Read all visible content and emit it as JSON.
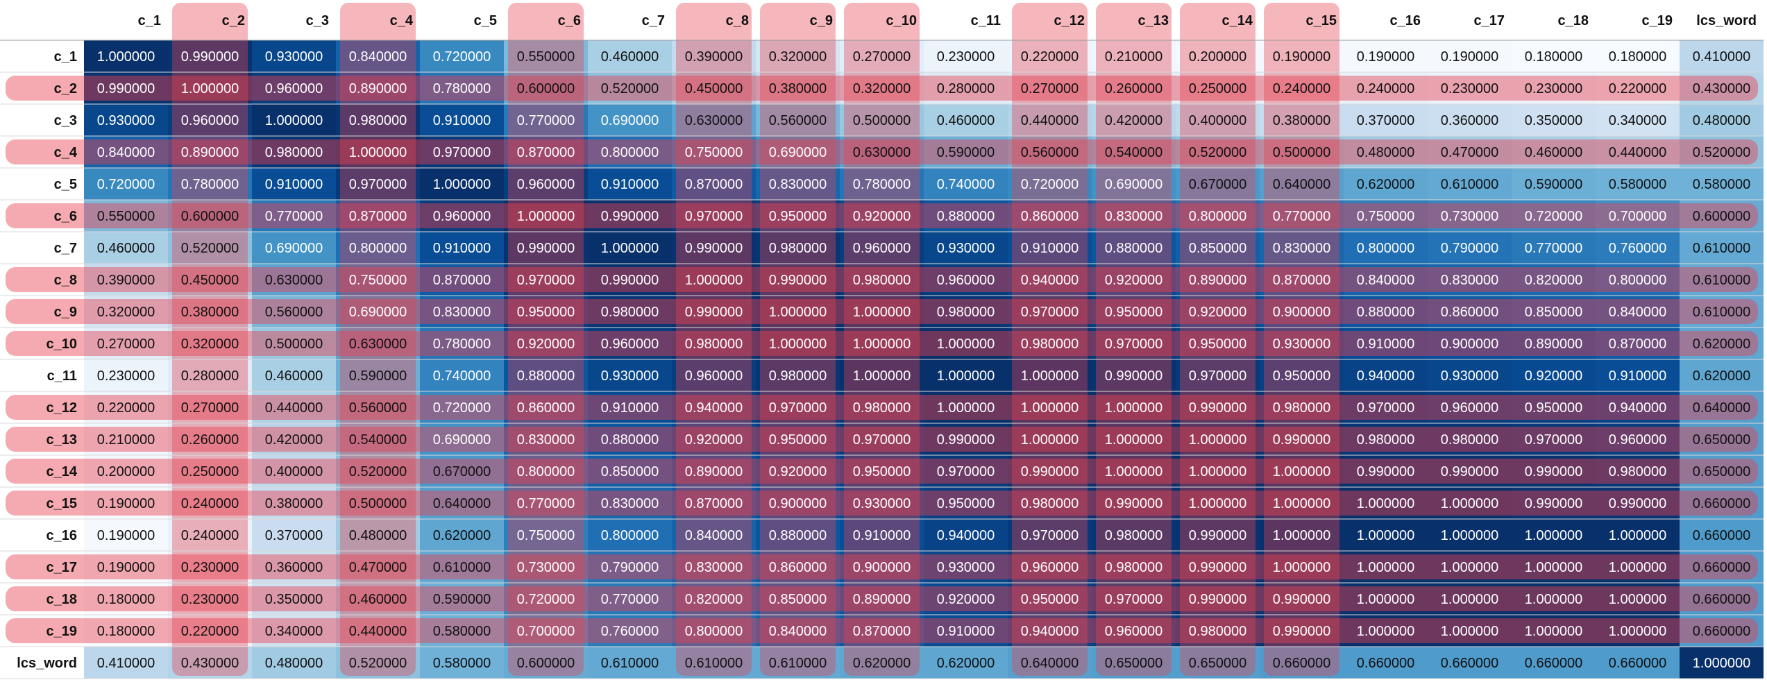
{
  "chart_data": {
    "type": "heatmap",
    "title": "",
    "colormap": {
      "name": "Blues",
      "stops": [
        "#f7fbff",
        "#deebf7",
        "#c6dbef",
        "#9ecae1",
        "#6baed6",
        "#4292c6",
        "#2171b5",
        "#08519c",
        "#08306b"
      ]
    },
    "highlight_color": "#e8414f",
    "rows": [
      "c_1",
      "c_2",
      "c_3",
      "c_4",
      "c_5",
      "c_6",
      "c_7",
      "c_8",
      "c_9",
      "c_10",
      "c_11",
      "c_12",
      "c_13",
      "c_14",
      "c_15",
      "c_16",
      "c_17",
      "c_18",
      "c_19",
      "lcs_word"
    ],
    "columns": [
      "c_1",
      "c_2",
      "c_3",
      "c_4",
      "c_5",
      "c_6",
      "c_7",
      "c_8",
      "c_9",
      "c_10",
      "c_11",
      "c_12",
      "c_13",
      "c_14",
      "c_15",
      "c_16",
      "c_17",
      "c_18",
      "c_19",
      "lcs_word"
    ],
    "highlighted_rows": [
      "c_2",
      "c_4",
      "c_6",
      "c_8",
      "c_9",
      "c_10",
      "c_12",
      "c_13",
      "c_14",
      "c_15",
      "c_17",
      "c_18",
      "c_19"
    ],
    "highlighted_columns": [
      "c_2",
      "c_4",
      "c_6",
      "c_8",
      "c_9",
      "c_10",
      "c_12",
      "c_13",
      "c_14",
      "c_15"
    ],
    "values": [
      [
        1.0,
        0.99,
        0.93,
        0.84,
        0.72,
        0.55,
        0.46,
        0.39,
        0.32,
        0.27,
        0.23,
        0.22,
        0.21,
        0.2,
        0.19,
        0.19,
        0.19,
        0.18,
        0.18,
        0.41
      ],
      [
        0.99,
        1.0,
        0.96,
        0.89,
        0.78,
        0.6,
        0.52,
        0.45,
        0.38,
        0.32,
        0.28,
        0.27,
        0.26,
        0.25,
        0.24,
        0.24,
        0.23,
        0.23,
        0.22,
        0.43
      ],
      [
        0.93,
        0.96,
        1.0,
        0.98,
        0.91,
        0.77,
        0.69,
        0.63,
        0.56,
        0.5,
        0.46,
        0.44,
        0.42,
        0.4,
        0.38,
        0.37,
        0.36,
        0.35,
        0.34,
        0.48
      ],
      [
        0.84,
        0.89,
        0.98,
        1.0,
        0.97,
        0.87,
        0.8,
        0.75,
        0.69,
        0.63,
        0.59,
        0.56,
        0.54,
        0.52,
        0.5,
        0.48,
        0.47,
        0.46,
        0.44,
        0.52
      ],
      [
        0.72,
        0.78,
        0.91,
        0.97,
        1.0,
        0.96,
        0.91,
        0.87,
        0.83,
        0.78,
        0.74,
        0.72,
        0.69,
        0.67,
        0.64,
        0.62,
        0.61,
        0.59,
        0.58,
        0.58
      ],
      [
        0.55,
        0.6,
        0.77,
        0.87,
        0.96,
        1.0,
        0.99,
        0.97,
        0.95,
        0.92,
        0.88,
        0.86,
        0.83,
        0.8,
        0.77,
        0.75,
        0.73,
        0.72,
        0.7,
        0.6
      ],
      [
        0.46,
        0.52,
        0.69,
        0.8,
        0.91,
        0.99,
        1.0,
        0.99,
        0.98,
        0.96,
        0.93,
        0.91,
        0.88,
        0.85,
        0.83,
        0.8,
        0.79,
        0.77,
        0.76,
        0.61
      ],
      [
        0.39,
        0.45,
        0.63,
        0.75,
        0.87,
        0.97,
        0.99,
        1.0,
        0.99,
        0.98,
        0.96,
        0.94,
        0.92,
        0.89,
        0.87,
        0.84,
        0.83,
        0.82,
        0.8,
        0.61
      ],
      [
        0.32,
        0.38,
        0.56,
        0.69,
        0.83,
        0.95,
        0.98,
        0.99,
        1.0,
        1.0,
        0.98,
        0.97,
        0.95,
        0.92,
        0.9,
        0.88,
        0.86,
        0.85,
        0.84,
        0.61
      ],
      [
        0.27,
        0.32,
        0.5,
        0.63,
        0.78,
        0.92,
        0.96,
        0.98,
        1.0,
        1.0,
        1.0,
        0.98,
        0.97,
        0.95,
        0.93,
        0.91,
        0.9,
        0.89,
        0.87,
        0.62
      ],
      [
        0.23,
        0.28,
        0.46,
        0.59,
        0.74,
        0.88,
        0.93,
        0.96,
        0.98,
        1.0,
        1.0,
        1.0,
        0.99,
        0.97,
        0.95,
        0.94,
        0.93,
        0.92,
        0.91,
        0.62
      ],
      [
        0.22,
        0.27,
        0.44,
        0.56,
        0.72,
        0.86,
        0.91,
        0.94,
        0.97,
        0.98,
        1.0,
        1.0,
        1.0,
        0.99,
        0.98,
        0.97,
        0.96,
        0.95,
        0.94,
        0.64
      ],
      [
        0.21,
        0.26,
        0.42,
        0.54,
        0.69,
        0.83,
        0.88,
        0.92,
        0.95,
        0.97,
        0.99,
        1.0,
        1.0,
        1.0,
        0.99,
        0.98,
        0.98,
        0.97,
        0.96,
        0.65
      ],
      [
        0.2,
        0.25,
        0.4,
        0.52,
        0.67,
        0.8,
        0.85,
        0.89,
        0.92,
        0.95,
        0.97,
        0.99,
        1.0,
        1.0,
        1.0,
        0.99,
        0.99,
        0.99,
        0.98,
        0.65
      ],
      [
        0.19,
        0.24,
        0.38,
        0.5,
        0.64,
        0.77,
        0.83,
        0.87,
        0.9,
        0.93,
        0.95,
        0.98,
        0.99,
        1.0,
        1.0,
        1.0,
        1.0,
        0.99,
        0.99,
        0.66
      ],
      [
        0.19,
        0.24,
        0.37,
        0.48,
        0.62,
        0.75,
        0.8,
        0.84,
        0.88,
        0.91,
        0.94,
        0.97,
        0.98,
        0.99,
        1.0,
        1.0,
        1.0,
        1.0,
        1.0,
        0.66
      ],
      [
        0.19,
        0.23,
        0.36,
        0.47,
        0.61,
        0.73,
        0.79,
        0.83,
        0.86,
        0.9,
        0.93,
        0.96,
        0.98,
        0.99,
        1.0,
        1.0,
        1.0,
        1.0,
        1.0,
        0.66
      ],
      [
        0.18,
        0.23,
        0.35,
        0.46,
        0.59,
        0.72,
        0.77,
        0.82,
        0.85,
        0.89,
        0.92,
        0.95,
        0.97,
        0.99,
        0.99,
        1.0,
        1.0,
        1.0,
        1.0,
        0.66
      ],
      [
        0.18,
        0.22,
        0.34,
        0.44,
        0.58,
        0.7,
        0.76,
        0.8,
        0.84,
        0.87,
        0.91,
        0.94,
        0.96,
        0.98,
        0.99,
        1.0,
        1.0,
        1.0,
        1.0,
        0.66
      ],
      [
        0.41,
        0.43,
        0.48,
        0.52,
        0.58,
        0.6,
        0.61,
        0.61,
        0.61,
        0.62,
        0.62,
        0.64,
        0.65,
        0.65,
        0.66,
        0.66,
        0.66,
        0.66,
        0.66,
        1.0
      ]
    ]
  }
}
